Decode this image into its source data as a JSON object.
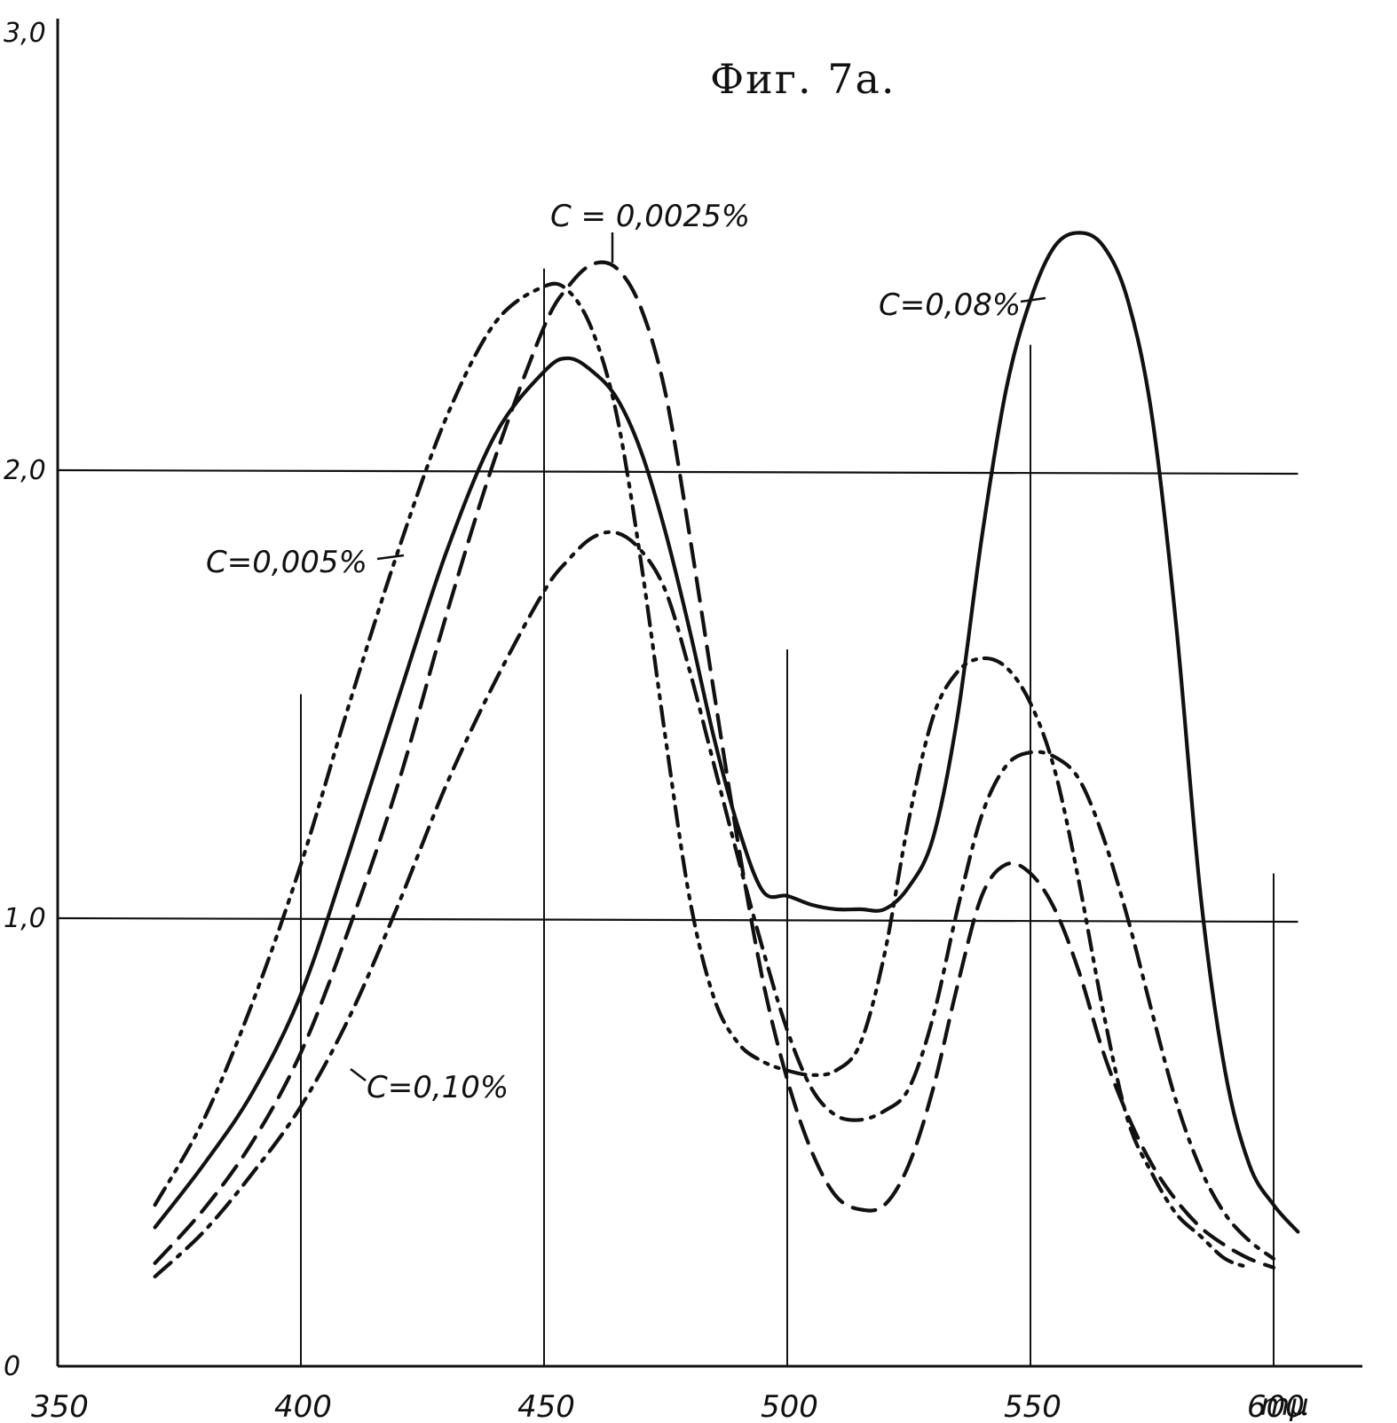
{
  "chart_data": {
    "type": "line",
    "title": "Фиг. 7а.",
    "xlabel": "mμ",
    "ylabel": "",
    "xlim": [
      350,
      610
    ],
    "ylim": [
      0,
      3.0
    ],
    "x_ticks": [
      {
        "value": 350,
        "label": "350"
      },
      {
        "value": 400,
        "label": "400"
      },
      {
        "value": 450,
        "label": "450"
      },
      {
        "value": 500,
        "label": "500"
      },
      {
        "value": 550,
        "label": "550"
      },
      {
        "value": 600,
        "label": "600"
      }
    ],
    "x_unit_label": "mμ",
    "y_ticks": [
      {
        "value": 0,
        "label": "0"
      },
      {
        "value": 1.0,
        "label": "1,0"
      },
      {
        "value": 2.0,
        "label": "2,0"
      },
      {
        "value": 3.0,
        "label": "3,0"
      }
    ],
    "grid": {
      "horizontal": [
        1.0,
        2.0
      ],
      "vertical": [
        400,
        450,
        500,
        550,
        600
      ]
    },
    "series": [
      {
        "name": "C = 0,0025%",
        "style": "long-dash",
        "x": [
          370,
          380,
          390,
          400,
          410,
          420,
          430,
          440,
          450,
          455,
          460,
          465,
          470,
          475,
          480,
          485,
          490,
          495,
          500,
          505,
          510,
          515,
          520,
          525,
          530,
          535,
          540,
          545,
          550,
          555,
          560,
          565,
          570,
          575,
          580,
          585,
          590,
          595,
          600
        ],
        "y": [
          0.23,
          0.35,
          0.5,
          0.7,
          0.98,
          1.3,
          1.68,
          2.03,
          2.32,
          2.41,
          2.46,
          2.45,
          2.36,
          2.17,
          1.85,
          1.5,
          1.16,
          0.86,
          0.64,
          0.48,
          0.38,
          0.35,
          0.36,
          0.45,
          0.62,
          0.85,
          1.05,
          1.12,
          1.1,
          1.02,
          0.88,
          0.7,
          0.56,
          0.45,
          0.37,
          0.31,
          0.27,
          0.24,
          0.22
        ]
      },
      {
        "name": "C = 0,005%",
        "style": "dash-dot-dot",
        "x": [
          370,
          380,
          390,
          400,
          410,
          420,
          430,
          440,
          450,
          455,
          460,
          465,
          470,
          475,
          480,
          485,
          490,
          495,
          500,
          505,
          510,
          515,
          520,
          525,
          530,
          535,
          540,
          545,
          550,
          555,
          560,
          565,
          570,
          575,
          580,
          585,
          590,
          595
        ],
        "y": [
          0.36,
          0.55,
          0.81,
          1.12,
          1.48,
          1.82,
          2.12,
          2.33,
          2.41,
          2.4,
          2.31,
          2.12,
          1.79,
          1.4,
          1.04,
          0.82,
          0.72,
          0.68,
          0.66,
          0.65,
          0.66,
          0.72,
          0.92,
          1.22,
          1.45,
          1.55,
          1.58,
          1.56,
          1.48,
          1.33,
          1.08,
          0.79,
          0.55,
          0.43,
          0.34,
          0.29,
          0.24,
          0.22
        ]
      },
      {
        "name": "C = 0,08%",
        "style": "solid",
        "x": [
          370,
          380,
          390,
          400,
          410,
          420,
          430,
          440,
          450,
          455,
          460,
          465,
          470,
          475,
          480,
          485,
          490,
          495,
          500,
          505,
          510,
          515,
          520,
          525,
          530,
          535,
          540,
          545,
          550,
          555,
          560,
          565,
          570,
          575,
          580,
          585,
          590,
          595,
          600,
          605
        ],
        "y": [
          0.31,
          0.45,
          0.61,
          0.83,
          1.15,
          1.49,
          1.82,
          2.08,
          2.22,
          2.25,
          2.22,
          2.16,
          2.04,
          1.86,
          1.64,
          1.4,
          1.2,
          1.06,
          1.05,
          1.03,
          1.02,
          1.02,
          1.02,
          1.07,
          1.18,
          1.45,
          1.85,
          2.18,
          2.38,
          2.5,
          2.53,
          2.5,
          2.38,
          2.12,
          1.65,
          1.05,
          0.66,
          0.45,
          0.36,
          0.3
        ]
      },
      {
        "name": "C = 0,10%",
        "style": "dash-dot",
        "x": [
          370,
          380,
          390,
          400,
          410,
          420,
          430,
          440,
          450,
          455,
          460,
          465,
          470,
          475,
          480,
          485,
          490,
          495,
          500,
          505,
          510,
          515,
          520,
          525,
          530,
          535,
          540,
          545,
          550,
          555,
          560,
          565,
          570,
          575,
          580,
          585,
          590,
          595,
          600
        ],
        "y": [
          0.2,
          0.3,
          0.43,
          0.58,
          0.78,
          1.03,
          1.3,
          1.53,
          1.73,
          1.8,
          1.85,
          1.86,
          1.82,
          1.73,
          1.55,
          1.34,
          1.13,
          0.93,
          0.75,
          0.62,
          0.56,
          0.55,
          0.57,
          0.62,
          0.78,
          1.02,
          1.23,
          1.34,
          1.37,
          1.36,
          1.31,
          1.18,
          1.0,
          0.79,
          0.59,
          0.44,
          0.34,
          0.28,
          0.24
        ]
      }
    ],
    "labels": [
      {
        "text": "C = 0,0025%",
        "series": 0
      },
      {
        "text": "C=0,005%",
        "series": 1
      },
      {
        "text": "C=0,08%",
        "series": 2
      },
      {
        "text": "C=0,10%",
        "series": 3
      }
    ]
  }
}
